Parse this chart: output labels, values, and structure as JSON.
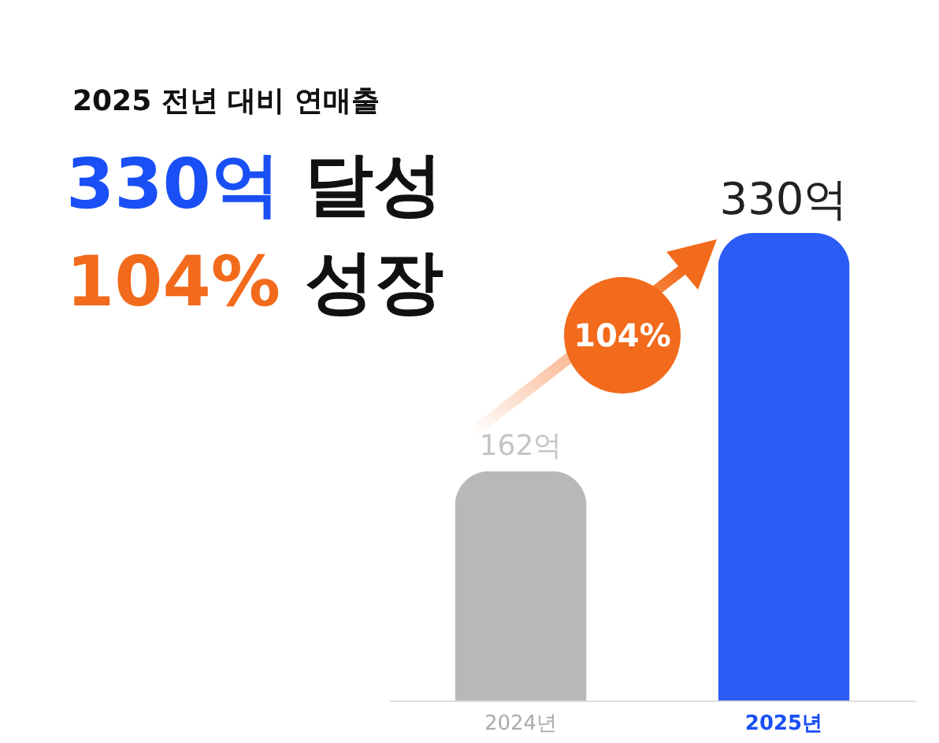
{
  "chart_data": {
    "type": "bar",
    "title": "2025 전년 대비 연매출",
    "annotations": [
      "330억 달성",
      "104% 성장",
      "104%"
    ],
    "categories": [
      "2024년",
      "2025년"
    ],
    "values": [
      162,
      330
    ],
    "colors": [
      "#b8b8b8",
      "#2b5cf6"
    ],
    "value_labels": [
      "162억",
      "330억"
    ]
  }
}
